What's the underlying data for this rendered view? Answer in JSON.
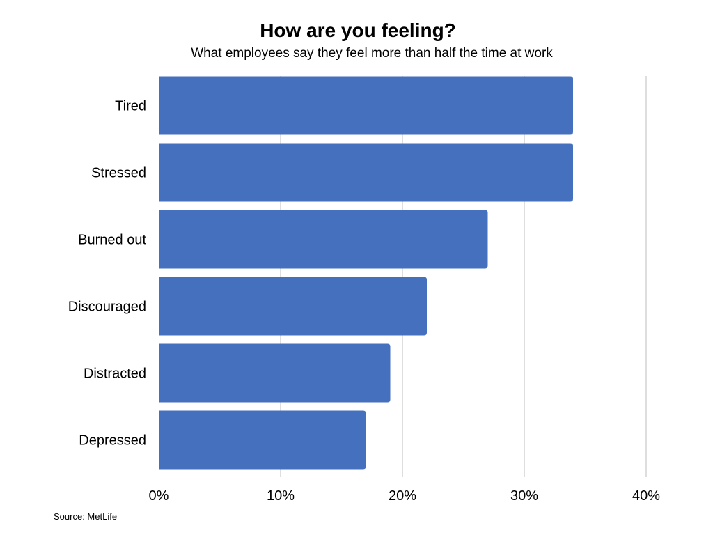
{
  "title": "How are you feeling?",
  "subtitle": "What employees say they feel more than half the time at work",
  "source": "Source: MetLife",
  "chart_data": {
    "type": "bar",
    "orientation": "horizontal",
    "title": "How are you feeling?",
    "subtitle": "What employees say they feel more than half the time at work",
    "categories": [
      "Tired",
      "Stressed",
      "Burned out",
      "Discouraged",
      "Distracted",
      "Depressed"
    ],
    "values": [
      34,
      34,
      27,
      22,
      19,
      17
    ],
    "unit": "%",
    "xlim": [
      0,
      40
    ],
    "xticks": [
      0,
      10,
      20,
      30,
      40
    ],
    "xtick_labels": [
      "0%",
      "10%",
      "20%",
      "30%",
      "40%"
    ],
    "xlabel": "",
    "ylabel": "",
    "grid": "vertical",
    "legend": "none",
    "bar_color": "#4570BE",
    "grid_color": "#D3D3D3"
  }
}
